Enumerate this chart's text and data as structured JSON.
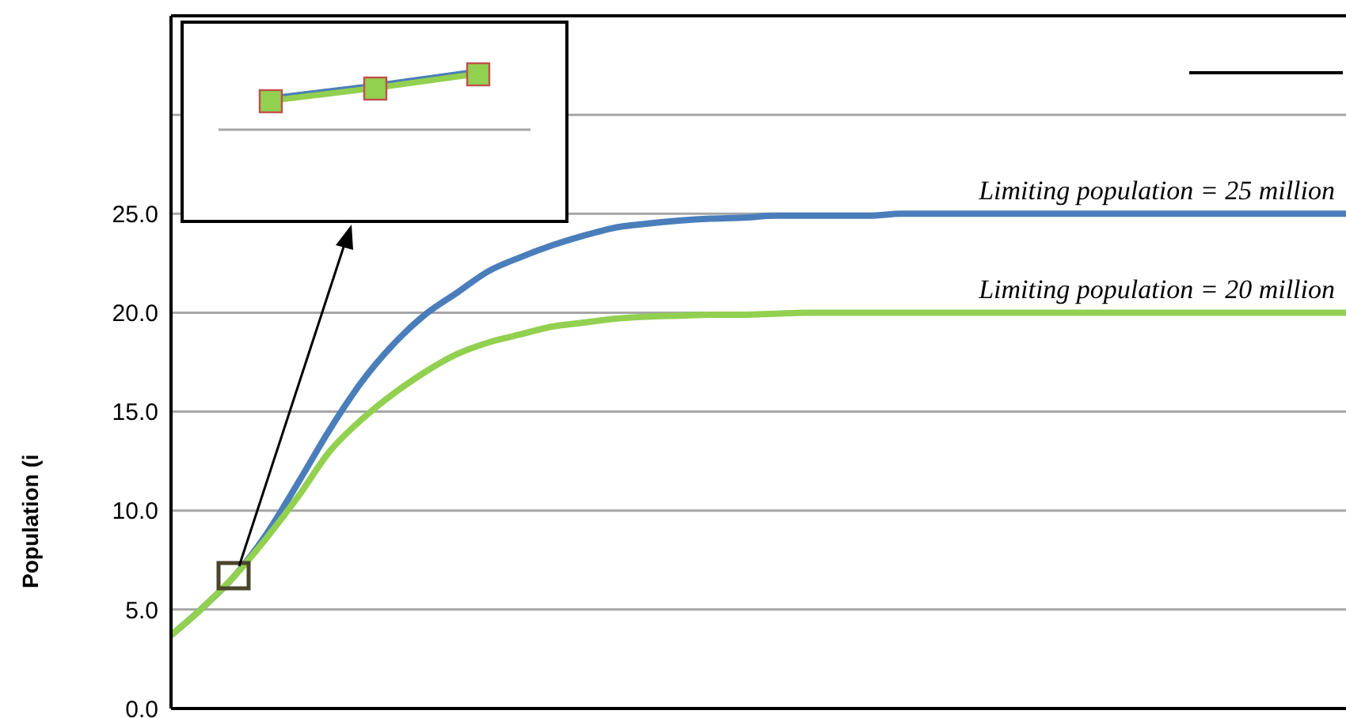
{
  "chart_data": {
    "type": "line",
    "ylabel": "Population (i",
    "categories": [
      null,
      null,
      null,
      null,
      null,
      null,
      null,
      null,
      null,
      null,
      null,
      null,
      null,
      null,
      null,
      null,
      null,
      null,
      null,
      null,
      null,
      null,
      null,
      null,
      null,
      null,
      null,
      null,
      null,
      null,
      null,
      null,
      null,
      null,
      null,
      null,
      null,
      null
    ],
    "series": [
      {
        "color": "#4a7ebb",
        "values": [
          3.7,
          5.1,
          6.7,
          8.8,
          11.4,
          14.1,
          16.5,
          18.4,
          19.9,
          21.0,
          22.1,
          22.8,
          23.4,
          23.9,
          24.3,
          24.5,
          24.65,
          24.75,
          24.8,
          24.9,
          24.9,
          24.9,
          24.9,
          25.0,
          25.0,
          25.0,
          25.0,
          25.0,
          25.0,
          25.0,
          25.0,
          25.0,
          25.0,
          25.0,
          25.0,
          25.0,
          25.0,
          25.0
        ]
      },
      {
        "color": "#92d050",
        "values": [
          3.7,
          5.1,
          6.7,
          8.6,
          10.7,
          13.0,
          14.6,
          15.9,
          17.0,
          17.9,
          18.5,
          18.9,
          19.3,
          19.5,
          19.7,
          19.8,
          19.85,
          19.9,
          19.9,
          19.95,
          20.0,
          20.0,
          20.0,
          20.0,
          20.0,
          20.0,
          20.0,
          20.0,
          20.0,
          20.0,
          20.0,
          20.0,
          20.0,
          20.0,
          20.0,
          20.0,
          20.0,
          20.0
        ]
      }
    ],
    "ylim": [
      0,
      35
    ],
    "yticks": [
      {
        "value": 0,
        "label": "0.0"
      },
      {
        "value": 5,
        "label": "5.0"
      },
      {
        "value": 10,
        "label": "10.0"
      },
      {
        "value": 15,
        "label": "15.0"
      },
      {
        "value": 20,
        "label": "20.0"
      },
      {
        "value": 25,
        "label": "25.0"
      },
      {
        "value": 30,
        "label": null
      },
      {
        "value": 35,
        "label": null
      }
    ],
    "annotations": [
      {
        "text": "Limiting population = 25 million",
        "y": 25
      },
      {
        "text": "Limiting population = 20 million",
        "y": 20
      }
    ],
    "grid": "y",
    "tick_labels": "y",
    "marker": "none",
    "line_style": "solid"
  }
}
